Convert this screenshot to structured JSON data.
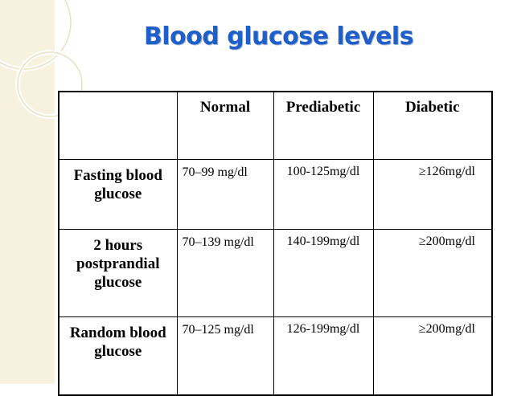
{
  "title": "Blood glucose levels",
  "table": {
    "headers": [
      "",
      "Normal",
      "Prediabetic",
      "Diabetic"
    ],
    "rows": [
      {
        "label": "Fasting blood glucose",
        "normal": "70–99 mg/dl",
        "prediabetic": "100-125mg/dl",
        "diabetic": "≥126mg/dl"
      },
      {
        "label": "2 hours postprandial glucose",
        "normal": "70–139 mg/dl",
        "prediabetic": "140-199mg/dl",
        "diabetic": "≥200mg/dl"
      },
      {
        "label": "Random blood glucose",
        "normal": "70–125 mg/dl",
        "prediabetic": "126-199mg/dl",
        "diabetic": "≥200mg/dl"
      }
    ]
  },
  "colors": {
    "title": "#1f5fc7",
    "side_panel": "#f6f2df"
  }
}
